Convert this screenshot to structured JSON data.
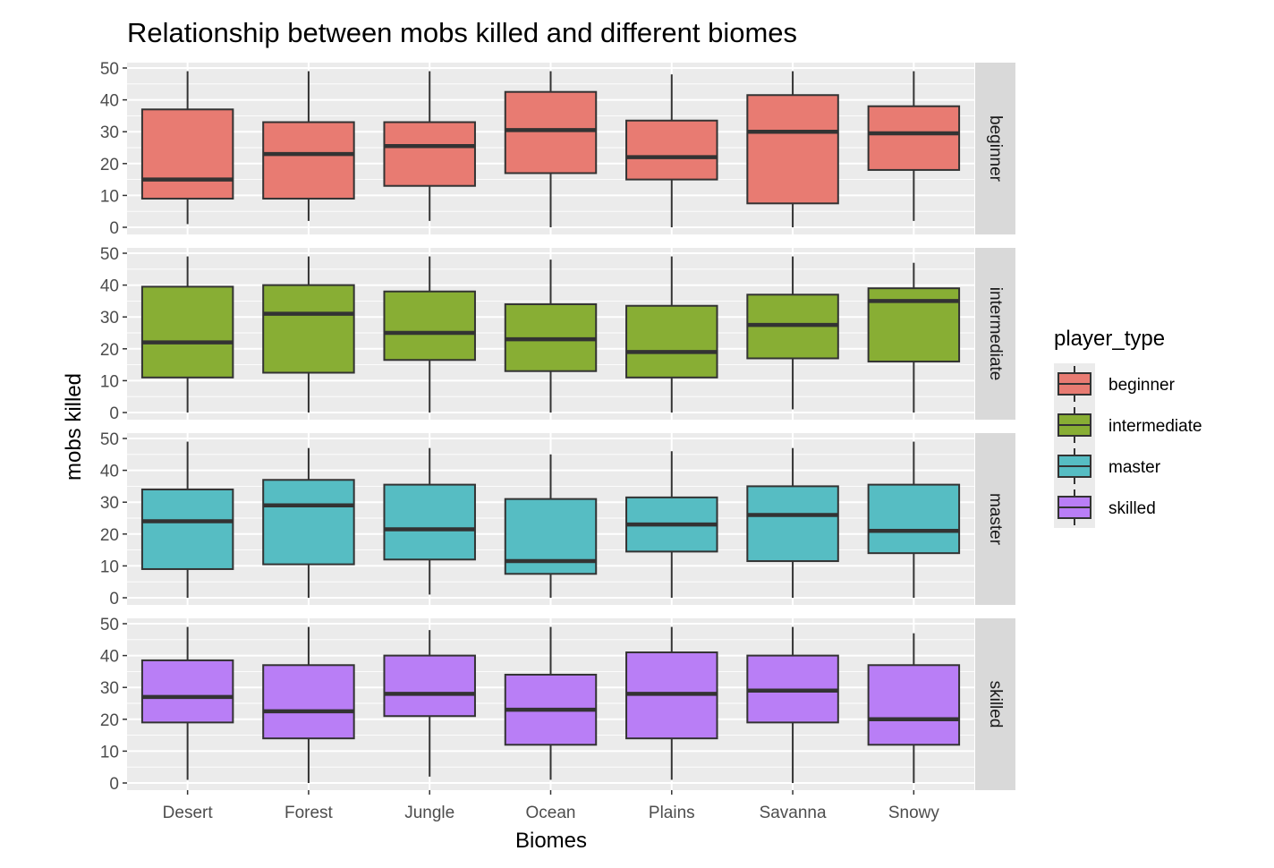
{
  "chart_data": {
    "type": "boxplot",
    "title": "Relationship between mobs killed and different biomes",
    "xlabel": "Biomes",
    "ylabel": "mobs killed",
    "categories": [
      "Desert",
      "Forest",
      "Jungle",
      "Ocean",
      "Plains",
      "Savanna",
      "Snowy"
    ],
    "ylim": [
      0,
      50
    ],
    "yticks": [
      0,
      10,
      20,
      30,
      40,
      50
    ],
    "facet_by": "player_type",
    "grid": true,
    "legend": {
      "title": "player_type",
      "position": "right",
      "items": [
        {
          "label": "beginner",
          "color": "#F8766D"
        },
        {
          "label": "intermediate",
          "color": "#7CAE00"
        },
        {
          "label": "master",
          "color": "#00BFC4"
        },
        {
          "label": "skilled",
          "color": "#C77CFF"
        }
      ]
    },
    "panel_background": "#EBEBEB",
    "strip_background": "#D9D9D9",
    "fills": {
      "beginner": "#E87B72",
      "intermediate": "#88AE34",
      "master": "#56BDC3",
      "skilled": "#B97EF6"
    },
    "panels": [
      {
        "label": "beginner",
        "boxes": [
          {
            "category": "Desert",
            "min": 1,
            "q1": 9,
            "median": 15,
            "q3": 37,
            "max": 49
          },
          {
            "category": "Forest",
            "min": 2,
            "q1": 9,
            "median": 23,
            "q3": 33,
            "max": 49
          },
          {
            "category": "Jungle",
            "min": 2,
            "q1": 13,
            "median": 25.5,
            "q3": 33,
            "max": 49
          },
          {
            "category": "Ocean",
            "min": 0,
            "q1": 17,
            "median": 30.5,
            "q3": 42.5,
            "max": 49
          },
          {
            "category": "Plains",
            "min": 0,
            "q1": 15,
            "median": 22,
            "q3": 33.5,
            "max": 48
          },
          {
            "category": "Savanna",
            "min": 0,
            "q1": 7.5,
            "median": 30,
            "q3": 41.5,
            "max": 49
          },
          {
            "category": "Snowy",
            "min": 2,
            "q1": 18,
            "median": 29.5,
            "q3": 38,
            "max": 49
          }
        ]
      },
      {
        "label": "intermediate",
        "boxes": [
          {
            "category": "Desert",
            "min": 0,
            "q1": 11,
            "median": 22,
            "q3": 39.5,
            "max": 49
          },
          {
            "category": "Forest",
            "min": 0,
            "q1": 12.5,
            "median": 31,
            "q3": 40,
            "max": 49
          },
          {
            "category": "Jungle",
            "min": 0,
            "q1": 16.5,
            "median": 25,
            "q3": 38,
            "max": 49
          },
          {
            "category": "Ocean",
            "min": 0,
            "q1": 13,
            "median": 23,
            "q3": 34,
            "max": 48
          },
          {
            "category": "Plains",
            "min": 0,
            "q1": 11,
            "median": 19,
            "q3": 33.5,
            "max": 49
          },
          {
            "category": "Savanna",
            "min": 1,
            "q1": 17,
            "median": 27.5,
            "q3": 37,
            "max": 49
          },
          {
            "category": "Snowy",
            "min": 0,
            "q1": 16,
            "median": 35,
            "q3": 39,
            "max": 47
          }
        ]
      },
      {
        "label": "master",
        "boxes": [
          {
            "category": "Desert",
            "min": 0,
            "q1": 9,
            "median": 24,
            "q3": 34,
            "max": 49
          },
          {
            "category": "Forest",
            "min": 0,
            "q1": 10.5,
            "median": 29,
            "q3": 37,
            "max": 47
          },
          {
            "category": "Jungle",
            "min": 1,
            "q1": 12,
            "median": 21.5,
            "q3": 35.5,
            "max": 47
          },
          {
            "category": "Ocean",
            "min": 0,
            "q1": 7.5,
            "median": 11.5,
            "q3": 31,
            "max": 45
          },
          {
            "category": "Plains",
            "min": 0,
            "q1": 14.5,
            "median": 23,
            "q3": 31.5,
            "max": 46
          },
          {
            "category": "Savanna",
            "min": 0,
            "q1": 11.5,
            "median": 26,
            "q3": 35,
            "max": 47
          },
          {
            "category": "Snowy",
            "min": 0,
            "q1": 14,
            "median": 21,
            "q3": 35.5,
            "max": 49
          }
        ]
      },
      {
        "label": "skilled",
        "boxes": [
          {
            "category": "Desert",
            "min": 1,
            "q1": 19,
            "median": 27,
            "q3": 38.5,
            "max": 49
          },
          {
            "category": "Forest",
            "min": 0,
            "q1": 14,
            "median": 22.5,
            "q3": 37,
            "max": 49
          },
          {
            "category": "Jungle",
            "min": 2,
            "q1": 21,
            "median": 28,
            "q3": 40,
            "max": 48
          },
          {
            "category": "Ocean",
            "min": 1,
            "q1": 12,
            "median": 23,
            "q3": 34,
            "max": 49
          },
          {
            "category": "Plains",
            "min": 1,
            "q1": 14,
            "median": 28,
            "q3": 41,
            "max": 49
          },
          {
            "category": "Savanna",
            "min": 0,
            "q1": 19,
            "median": 29,
            "q3": 40,
            "max": 49
          },
          {
            "category": "Snowy",
            "min": 0,
            "q1": 12,
            "median": 20,
            "q3": 37,
            "max": 47
          }
        ]
      }
    ]
  }
}
